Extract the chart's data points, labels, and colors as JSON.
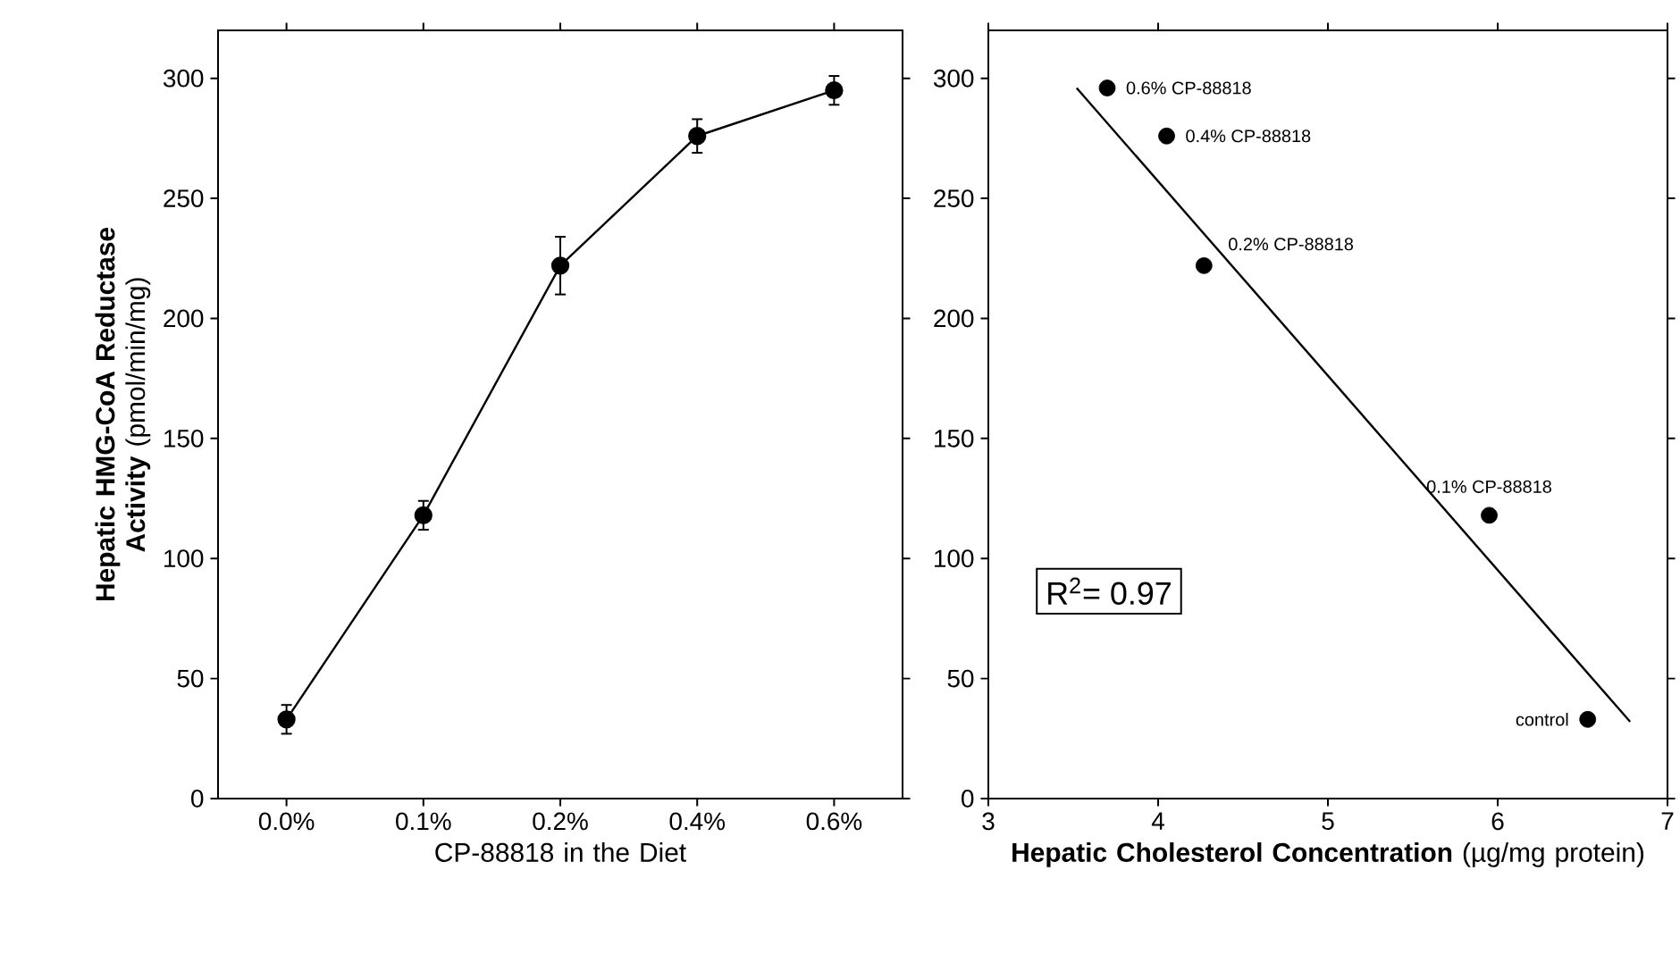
{
  "chart_data": [
    {
      "type": "line",
      "xlabel": "CP-88818 in the Diet",
      "ylabel": "**Hepatic HMG-CoA Reductase Activity** (pmol/min/mg)",
      "categories": [
        "0.0%",
        "0.1%",
        "0.2%",
        "0.4%",
        "0.6%"
      ],
      "values": [
        33,
        118,
        222,
        276,
        295
      ],
      "errors": [
        6,
        6,
        12,
        7,
        6
      ],
      "color": "#000000",
      "marker": "circle",
      "line_style": "solid",
      "ylim": [
        0,
        320
      ],
      "yticks": [
        0,
        50,
        100,
        150,
        200,
        250,
        300
      ]
    },
    {
      "type": "scatter",
      "xlabel": "**Hepatic Cholesterol Concentration** (µg/mg protein)",
      "xlim": [
        3,
        7
      ],
      "xticks": [
        3,
        4,
        5,
        6,
        7
      ],
      "ylim": [
        0,
        320
      ],
      "yticks": [
        0,
        50,
        100,
        150,
        200,
        250,
        300
      ],
      "series": [
        {
          "type": "scatter",
          "color": "#000000",
          "marker": "circle",
          "x": [
            3.7,
            4.05,
            4.27,
            5.95,
            6.53
          ],
          "values": [
            296,
            276,
            222,
            118,
            33
          ]
        },
        {
          "type": "line",
          "color": "#000000",
          "marker": "none",
          "line_style": "solid",
          "x": [
            3.52,
            6.78
          ],
          "values": [
            296,
            32
          ]
        }
      ],
      "annotations": [
        {
          "text": "0.6% CP-88818",
          "x": 3.7,
          "y": 296
        },
        {
          "text": "0.4% CP-88818",
          "x": 4.05,
          "y": 276
        },
        {
          "text": "0.2% CP-88818",
          "x": 4.27,
          "y": 222
        },
        {
          "text": "0.1% CP-88818",
          "x": 5.95,
          "y": 118
        },
        {
          "text": "control",
          "x": 6.53,
          "y": 33
        },
        "R$^{2}$= 0.97"
      ]
    }
  ]
}
